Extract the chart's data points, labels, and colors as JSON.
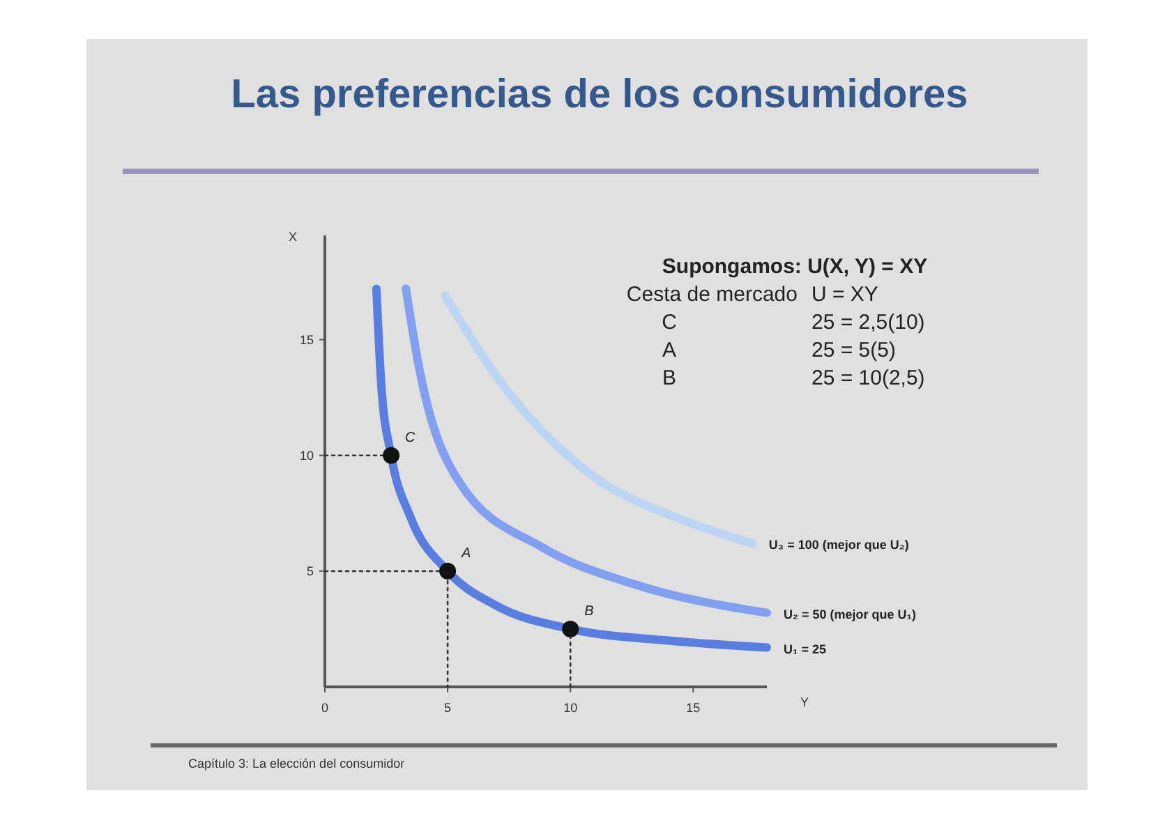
{
  "chart_data": {
    "type": "line",
    "title": "Las preferencias de los consumidores",
    "xlabel": "Y",
    "ylabel": "X",
    "xlim": [
      0,
      18
    ],
    "ylim": [
      0,
      19.5
    ],
    "xticks": [
      0,
      5,
      10,
      15
    ],
    "yticks": [
      5,
      10,
      15
    ],
    "annotations": [
      "Supongamos: U(X, Y) = XY",
      "Cesta de mercado\tU  = XY",
      "C\t25 = 2,5(10)",
      "A\t25 = 5(5)",
      "B\t25 = 10(2,5)",
      "Capítulo 3: La elección del consumidor"
    ],
    "series": [
      {
        "name": "U₁ = 25",
        "color": "#5a7ee0",
        "x": [
          2.1,
          2.3,
          2.7,
          3.5,
          5,
          7,
          10,
          14,
          18
        ],
        "values": [
          17.2,
          13,
          10,
          7.3,
          5,
          3.5,
          2.5,
          2,
          1.7
        ]
      },
      {
        "name": "U₂ = 50 (mejor que U₁)",
        "color": "#829ff0",
        "x": [
          3.3,
          3.8,
          5.5,
          8.9,
          12.7,
          18
        ],
        "values": [
          17.2,
          14,
          8.8,
          6,
          4.4,
          3.2
        ]
      },
      {
        "name": "U₃ = 100 (mejor que U₂)",
        "color": "#bcd5f4",
        "x": [
          4.9,
          7,
          10.8,
          14.6,
          17.4
        ],
        "values": [
          16.9,
          13.4,
          9.2,
          7.2,
          6.2
        ]
      },
      {
        "type": "line",
        "line_style": "dotted",
        "color": "#333333",
        "x": [
          0,
          2.7
        ],
        "values": [
          10,
          10
        ]
      },
      {
        "type": "line",
        "line_style": "dotted",
        "color": "#333333",
        "x": [
          0,
          5,
          5
        ],
        "values": [
          5,
          5,
          0
        ]
      },
      {
        "type": "line",
        "line_style": "dotted",
        "color": "#333333",
        "x": [
          10,
          10
        ],
        "values": [
          0,
          2.5
        ]
      },
      {
        "type": "scatter",
        "marker": "circle",
        "color": "#111111",
        "x": [
          2.7,
          5,
          10
        ],
        "values": [
          10,
          5,
          2.5
        ],
        "value_labels": [
          "C",
          "A",
          "B"
        ]
      }
    ]
  }
}
